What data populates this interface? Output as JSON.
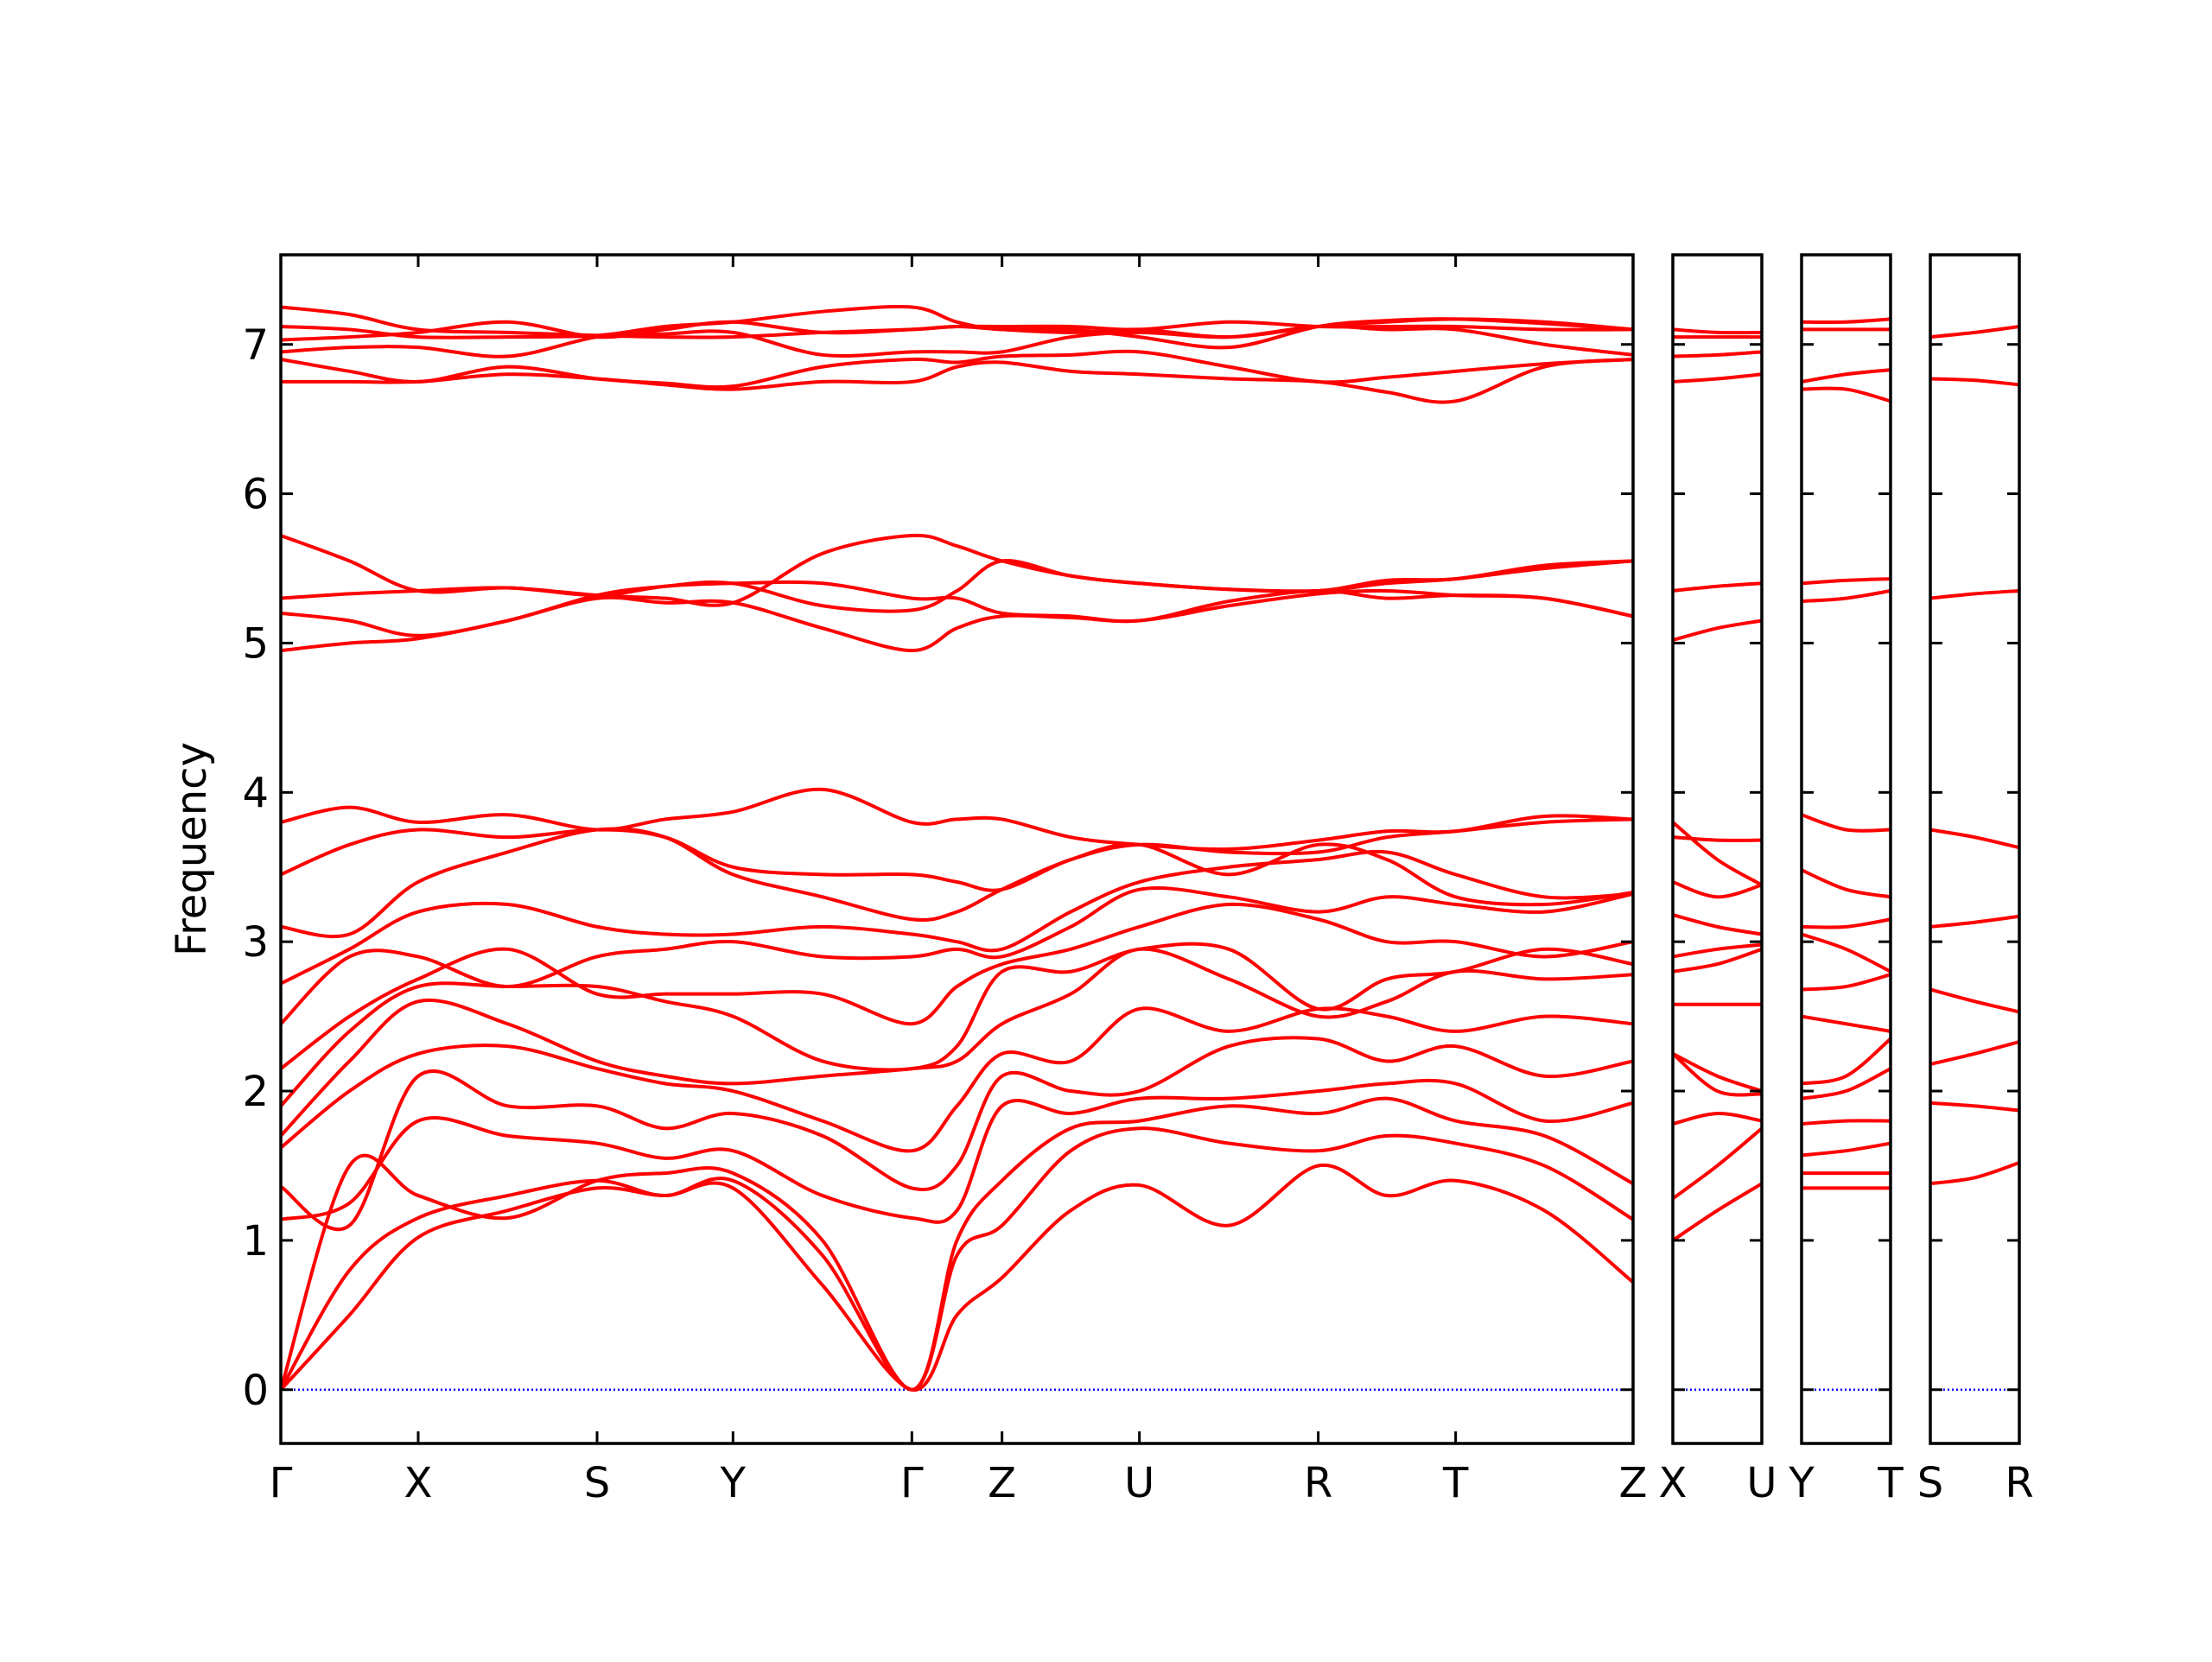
{
  "chart_data": [
    {
      "type": "line",
      "ylabel": "Frequency",
      "color": "#ff0000",
      "hline": 0,
      "hline_color": "#0000ff",
      "show_ytick_labels": true,
      "xlim": [
        0,
        9.45
      ],
      "ylim": [
        -0.36,
        7.6
      ],
      "yticks": [
        0,
        1,
        2,
        3,
        4,
        5,
        6,
        7
      ],
      "xticks": [
        {
          "value": 0,
          "label": "Γ"
        },
        {
          "value": 0.96,
          "label": "X"
        },
        {
          "value": 2.21,
          "label": "S"
        },
        {
          "value": 3.16,
          "label": "Y"
        },
        {
          "value": 4.41,
          "label": "Γ"
        },
        {
          "value": 5.04,
          "label": "Z"
        },
        {
          "value": 6.0,
          "label": "U"
        },
        {
          "value": 7.25,
          "label": "R"
        },
        {
          "value": 8.21,
          "label": "T"
        },
        {
          "value": 9.45,
          "label": "Z"
        }
      ],
      "x": [
        0,
        0.48,
        0.96,
        1.585,
        2.21,
        2.685,
        3.16,
        3.785,
        4.41,
        4.725,
        5.04,
        5.52,
        6.0,
        6.625,
        7.25,
        7.73,
        8.21,
        8.83,
        9.45
      ],
      "series": [
        {
          "values": [
            0,
            0.5,
            1.02,
            1.2,
            1.35,
            1.3,
            1.35,
            0.7,
            0,
            0.5,
            0.75,
            1.2,
            1.37,
            1.1,
            1.5,
            1.3,
            1.4,
            1.2,
            0.72
          ]
        },
        {
          "values": [
            0,
            0.8,
            1.15,
            1.3,
            1.4,
            1.3,
            1.4,
            0.9,
            0,
            0.9,
            1.1,
            1.6,
            1.75,
            1.65,
            1.6,
            1.7,
            1.65,
            1.5,
            1.14
          ]
        },
        {
          "values": [
            0,
            1.5,
            1.3,
            1.15,
            1.4,
            1.45,
            1.45,
            1.0,
            0,
            1.0,
            1.4,
            1.75,
            1.8,
            1.9,
            1.85,
            1.95,
            1.8,
            1.7,
            1.38
          ]
        },
        {
          "values": [
            1.14,
            1.25,
            1.8,
            1.7,
            1.65,
            1.55,
            1.6,
            1.3,
            1.15,
            1.2,
            1.9,
            1.85,
            1.95,
            1.95,
            2.0,
            2.05,
            2.05,
            1.8,
            1.92
          ]
        },
        {
          "values": [
            1.36,
            1.1,
            2.1,
            1.9,
            1.9,
            1.75,
            1.85,
            1.7,
            1.35,
            1.5,
            2.1,
            2.0,
            2.0,
            2.3,
            2.35,
            2.2,
            2.3,
            2.1,
            2.2
          ]
        },
        {
          "values": [
            1.62,
            2.0,
            2.25,
            2.3,
            2.15,
            2.05,
            2.0,
            1.8,
            1.6,
            1.9,
            2.25,
            2.2,
            2.55,
            2.4,
            2.55,
            2.5,
            2.4,
            2.5,
            2.45
          ]
        },
        {
          "values": [
            1.7,
            2.2,
            2.6,
            2.45,
            2.2,
            2.1,
            2.05,
            2.1,
            2.15,
            2.2,
            2.45,
            2.65,
            2.95,
            2.75,
            2.5,
            2.6,
            2.8,
            2.75,
            2.78
          ]
        },
        {
          "values": [
            1.9,
            2.4,
            2.7,
            2.7,
            2.7,
            2.6,
            2.5,
            2.2,
            2.15,
            2.3,
            2.8,
            2.8,
            2.95,
            2.95,
            2.55,
            2.75,
            2.8,
            2.95,
            2.85
          ]
        },
        {
          "values": [
            2.15,
            2.5,
            2.75,
            2.95,
            2.65,
            2.65,
            2.65,
            2.65,
            2.45,
            2.7,
            2.85,
            2.95,
            3.1,
            3.25,
            3.15,
            3.0,
            3.0,
            2.9,
            3.0
          ]
        },
        {
          "values": [
            2.45,
            2.9,
            2.9,
            2.7,
            2.9,
            2.95,
            3.0,
            2.9,
            2.9,
            2.95,
            2.9,
            3.1,
            3.35,
            3.3,
            3.2,
            3.3,
            3.25,
            3.2,
            3.32
          ]
        },
        {
          "values": [
            2.72,
            2.95,
            3.2,
            3.25,
            3.1,
            3.05,
            3.05,
            3.1,
            3.05,
            3.0,
            2.95,
            3.2,
            3.4,
            3.5,
            3.55,
            3.6,
            3.45,
            3.3,
            3.32
          ]
        },
        {
          "values": [
            3.1,
            3.05,
            3.4,
            3.6,
            3.75,
            3.7,
            3.45,
            3.3,
            3.15,
            3.2,
            3.35,
            3.55,
            3.65,
            3.6,
            3.6,
            3.7,
            3.74,
            3.8,
            3.82
          ]
        },
        {
          "values": [
            3.45,
            3.65,
            3.75,
            3.7,
            3.75,
            3.7,
            3.5,
            3.45,
            3.45,
            3.4,
            3.35,
            3.55,
            3.65,
            3.45,
            3.65,
            3.55,
            3.3,
            3.25,
            3.33
          ]
        },
        {
          "values": [
            3.8,
            3.9,
            3.8,
            3.85,
            3.75,
            3.82,
            3.87,
            4.02,
            3.8,
            3.82,
            3.82,
            3.7,
            3.65,
            3.62,
            3.68,
            3.74,
            3.74,
            3.84,
            3.82
          ]
        },
        {
          "values": [
            4.95,
            5.0,
            5.03,
            5.15,
            5.3,
            5.27,
            5.27,
            5.1,
            4.95,
            5.1,
            5.18,
            5.17,
            5.15,
            5.25,
            5.33,
            5.35,
            5.32,
            5.3,
            5.18
          ]
        },
        {
          "values": [
            5.2,
            5.15,
            5.05,
            5.15,
            5.32,
            5.38,
            5.4,
            5.25,
            5.22,
            5.35,
            5.55,
            5.45,
            5.4,
            5.36,
            5.35,
            5.4,
            5.43,
            5.5,
            5.55
          ]
        },
        {
          "values": [
            5.3,
            5.33,
            5.35,
            5.37,
            5.32,
            5.38,
            5.4,
            5.4,
            5.3,
            5.3,
            5.2,
            5.18,
            5.15,
            5.28,
            5.35,
            5.3,
            5.32,
            5.3,
            5.18
          ]
        },
        {
          "values": [
            5.72,
            5.55,
            5.35,
            5.37,
            5.32,
            5.3,
            5.27,
            5.6,
            5.72,
            5.65,
            5.55,
            5.45,
            5.4,
            5.36,
            5.35,
            5.42,
            5.43,
            5.52,
            5.55
          ]
        },
        {
          "values": [
            6.75,
            6.75,
            6.75,
            6.8,
            6.77,
            6.73,
            6.7,
            6.75,
            6.75,
            6.85,
            6.88,
            6.82,
            6.8,
            6.77,
            6.75,
            6.68,
            6.62,
            6.85,
            6.9
          ]
        },
        {
          "values": [
            6.9,
            6.82,
            6.75,
            6.85,
            6.77,
            6.74,
            6.72,
            6.85,
            6.9,
            6.88,
            6.92,
            6.93,
            6.95,
            6.85,
            6.75,
            6.78,
            6.82,
            6.87,
            6.9
          ]
        },
        {
          "values": [
            6.95,
            6.98,
            6.98,
            6.92,
            7.05,
            7.07,
            7.08,
            6.93,
            6.95,
            6.95,
            6.95,
            7.05,
            7.08,
            7.05,
            7.12,
            7.1,
            7.1,
            7.0,
            6.93
          ]
        },
        {
          "values": [
            7.03,
            7.05,
            7.08,
            7.15,
            7.05,
            7.1,
            7.15,
            7.08,
            7.1,
            7.12,
            7.1,
            7.08,
            7.1,
            7.05,
            7.12,
            7.15,
            7.17,
            7.15,
            7.1
          ]
        },
        {
          "values": [
            7.12,
            7.1,
            7.05,
            7.05,
            7.06,
            7.12,
            7.15,
            7.22,
            7.25,
            7.15,
            7.1,
            7.1,
            7.05,
            6.98,
            7.12,
            7.16,
            7.17,
            7.14,
            7.1
          ]
        },
        {
          "values": [
            7.25,
            7.2,
            7.1,
            7.08,
            7.06,
            7.05,
            7.05,
            7.08,
            7.1,
            7.12,
            7.12,
            7.12,
            7.1,
            7.15,
            7.12,
            7.12,
            7.12,
            7.1,
            7.1
          ]
        }
      ]
    },
    {
      "type": "line",
      "color": "#ff0000",
      "hline": 0,
      "hline_color": "#0000ff",
      "show_ytick_labels": false,
      "xlim": [
        0,
        0.62
      ],
      "ylim": [
        -0.36,
        7.6
      ],
      "yticks": [
        0,
        1,
        2,
        3,
        4,
        5,
        6,
        7
      ],
      "xticks": [
        {
          "value": 0,
          "label": "X"
        },
        {
          "value": 0.62,
          "label": "U"
        }
      ],
      "x": [
        0,
        0.31,
        0.62
      ],
      "series": [
        {
          "values": [
            1.0,
            1.2,
            1.38
          ]
        },
        {
          "values": [
            1.28,
            1.5,
            1.75
          ]
        },
        {
          "values": [
            1.78,
            1.85,
            1.8
          ]
        },
        {
          "values": [
            2.25,
            2.1,
            2.0
          ]
        },
        {
          "values": [
            2.25,
            2.0,
            1.98
          ]
        },
        {
          "values": [
            2.58,
            2.58,
            2.58
          ]
        },
        {
          "values": [
            2.8,
            2.85,
            2.95
          ]
        },
        {
          "values": [
            2.9,
            2.95,
            2.98
          ]
        },
        {
          "values": [
            3.18,
            3.1,
            3.05
          ]
        },
        {
          "values": [
            3.4,
            3.3,
            3.38
          ]
        },
        {
          "values": [
            3.7,
            3.68,
            3.68
          ]
        },
        {
          "values": [
            3.8,
            3.55,
            3.38
          ]
        },
        {
          "values": [
            5.02,
            5.1,
            5.15
          ]
        },
        {
          "values": [
            5.35,
            5.38,
            5.4
          ]
        },
        {
          "values": [
            6.75,
            6.77,
            6.8
          ]
        },
        {
          "values": [
            6.92,
            6.93,
            6.95
          ]
        },
        {
          "values": [
            7.05,
            7.05,
            7.05
          ]
        },
        {
          "values": [
            7.1,
            7.08,
            7.08
          ]
        }
      ]
    },
    {
      "type": "line",
      "color": "#ff0000",
      "hline": 0,
      "hline_color": "#0000ff",
      "show_ytick_labels": false,
      "xlim": [
        0,
        0.62
      ],
      "ylim": [
        -0.36,
        7.6
      ],
      "yticks": [
        0,
        1,
        2,
        3,
        4,
        5,
        6,
        7
      ],
      "xticks": [
        {
          "value": 0,
          "label": "Y"
        },
        {
          "value": 0.62,
          "label": "T"
        }
      ],
      "x": [
        0,
        0.31,
        0.62
      ],
      "series": [
        {
          "values": [
            1.35,
            1.35,
            1.35
          ]
        },
        {
          "values": [
            1.45,
            1.45,
            1.45
          ]
        },
        {
          "values": [
            1.57,
            1.6,
            1.65
          ]
        },
        {
          "values": [
            1.78,
            1.8,
            1.8
          ]
        },
        {
          "values": [
            1.95,
            2.0,
            2.15
          ]
        },
        {
          "values": [
            2.05,
            2.1,
            2.35
          ]
        },
        {
          "values": [
            2.5,
            2.45,
            2.4
          ]
        },
        {
          "values": [
            2.68,
            2.7,
            2.78
          ]
        },
        {
          "values": [
            3.05,
            2.95,
            2.8
          ]
        },
        {
          "values": [
            3.1,
            3.1,
            3.15
          ]
        },
        {
          "values": [
            3.48,
            3.35,
            3.3
          ]
        },
        {
          "values": [
            3.85,
            3.75,
            3.75
          ]
        },
        {
          "values": [
            5.28,
            5.3,
            5.35
          ]
        },
        {
          "values": [
            5.4,
            5.42,
            5.43
          ]
        },
        {
          "values": [
            6.7,
            6.7,
            6.62
          ]
        },
        {
          "values": [
            6.75,
            6.8,
            6.83
          ]
        },
        {
          "values": [
            7.1,
            7.1,
            7.1
          ]
        },
        {
          "values": [
            7.15,
            7.15,
            7.17
          ]
        }
      ]
    },
    {
      "type": "line",
      "color": "#ff0000",
      "hline": 0,
      "hline_color": "#0000ff",
      "show_ytick_labels": false,
      "xlim": [
        0,
        0.62
      ],
      "ylim": [
        -0.36,
        7.6
      ],
      "yticks": [
        0,
        1,
        2,
        3,
        4,
        5,
        6,
        7
      ],
      "xticks": [
        {
          "value": 0,
          "label": "S"
        },
        {
          "value": 0.62,
          "label": "R"
        }
      ],
      "x": [
        0,
        0.31,
        0.62
      ],
      "series": [
        {
          "values": [
            1.38,
            1.42,
            1.52
          ]
        },
        {
          "values": [
            1.92,
            1.9,
            1.87
          ]
        },
        {
          "values": [
            2.18,
            2.25,
            2.33
          ]
        },
        {
          "values": [
            2.68,
            2.6,
            2.53
          ]
        },
        {
          "values": [
            3.1,
            3.13,
            3.17
          ]
        },
        {
          "values": [
            3.75,
            3.7,
            3.63
          ]
        },
        {
          "values": [
            5.3,
            5.33,
            5.35
          ]
        },
        {
          "values": [
            6.77,
            6.76,
            6.73
          ]
        },
        {
          "values": [
            7.05,
            7.08,
            7.12
          ]
        }
      ]
    }
  ]
}
